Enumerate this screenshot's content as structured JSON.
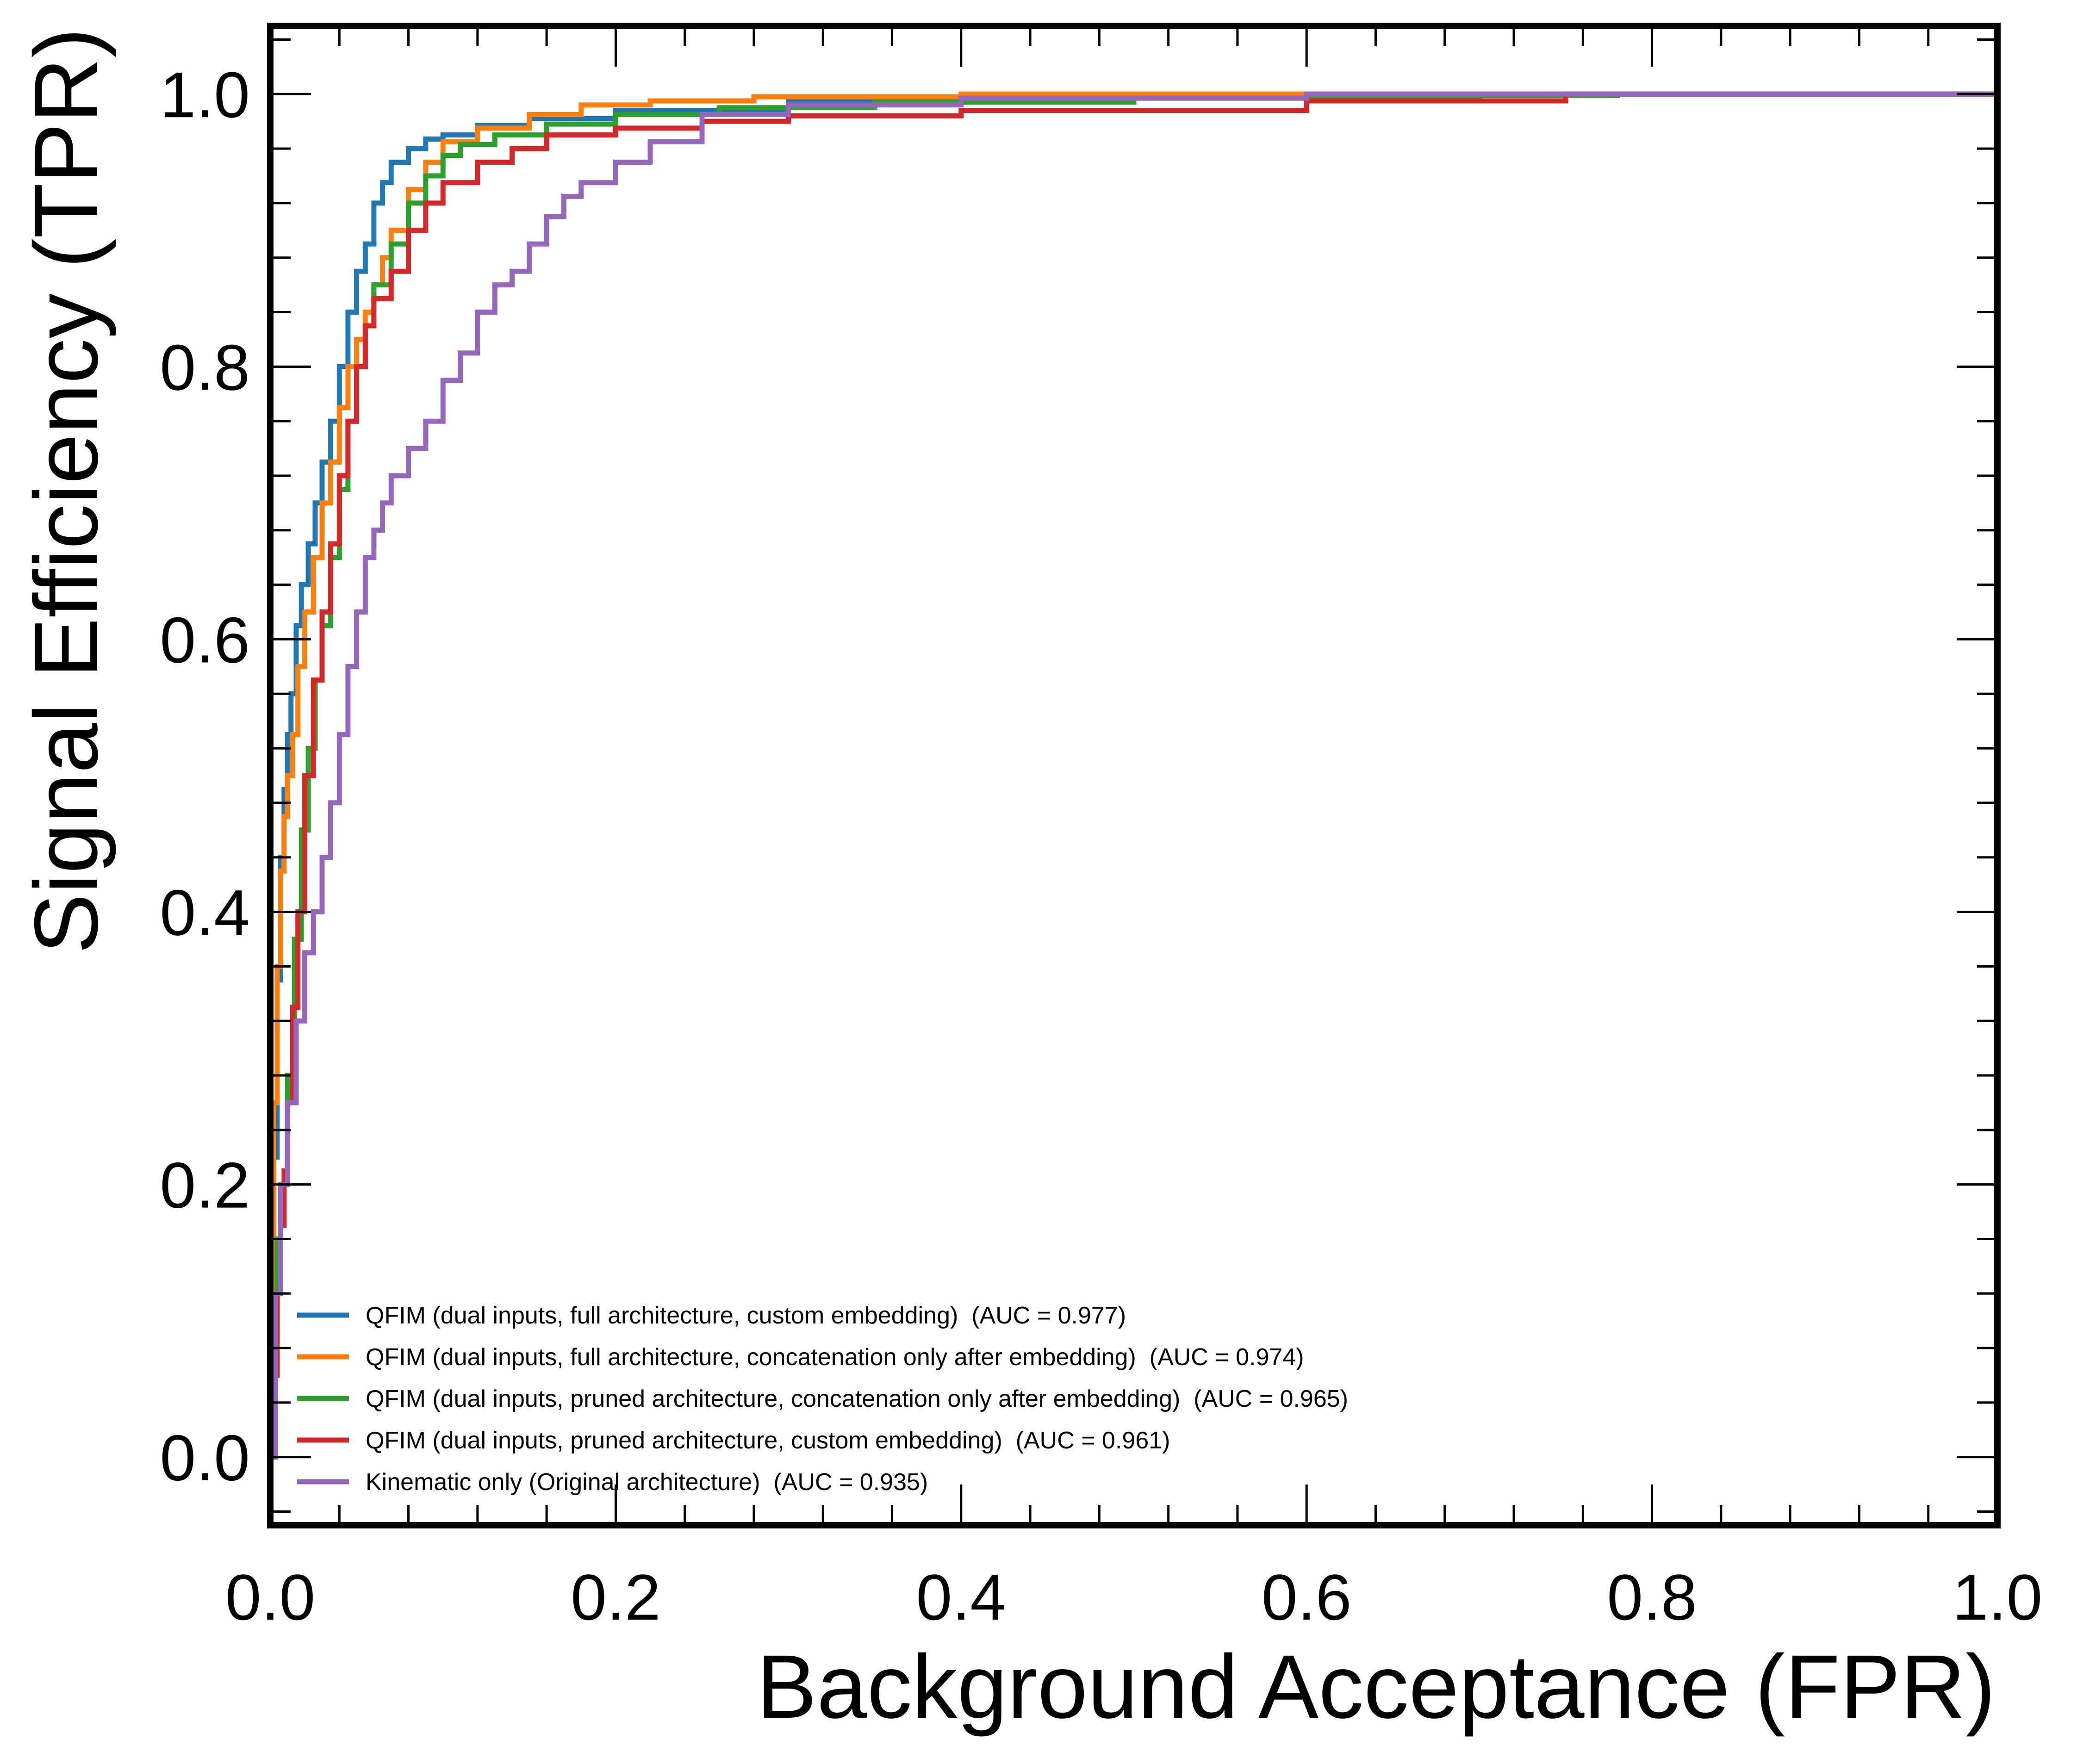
{
  "chart_data": {
    "type": "line",
    "xlabel": "Background Acceptance (FPR)",
    "ylabel": "Signal Efficiency (TPR)",
    "xlim": [
      0.0,
      1.0
    ],
    "ylim": [
      -0.05,
      1.05
    ],
    "x_ticks": [
      0.0,
      0.2,
      0.4,
      0.6,
      0.8,
      1.0
    ],
    "x_tick_labels": [
      "0.0",
      "0.2",
      "0.4",
      "0.6",
      "0.8",
      "1.0"
    ],
    "y_ticks": [
      0.0,
      0.2,
      0.4,
      0.6,
      0.8,
      1.0
    ],
    "y_tick_labels": [
      "0.0",
      "0.2",
      "0.4",
      "0.6",
      "0.8",
      "1.0"
    ],
    "grid": false,
    "legend_position": "lower-left",
    "series": [
      {
        "name": "QFIM (dual inputs, full architecture, custom embedding)  (AUC = 0.977)",
        "color": "#1f77b4",
        "x": [
          0.0,
          0.001,
          0.002,
          0.004,
          0.006,
          0.008,
          0.01,
          0.012,
          0.015,
          0.018,
          0.022,
          0.026,
          0.03,
          0.035,
          0.04,
          0.045,
          0.05,
          0.055,
          0.06,
          0.065,
          0.07,
          0.08,
          0.09,
          0.1,
          0.12,
          0.15,
          0.2,
          0.3,
          0.4,
          0.6,
          0.8,
          1.0
        ],
        "y": [
          0.0,
          0.1,
          0.22,
          0.35,
          0.44,
          0.49,
          0.53,
          0.56,
          0.61,
          0.64,
          0.67,
          0.7,
          0.73,
          0.76,
          0.8,
          0.84,
          0.87,
          0.89,
          0.92,
          0.935,
          0.95,
          0.96,
          0.967,
          0.97,
          0.977,
          0.982,
          0.988,
          0.995,
          0.998,
          1.0,
          1.0,
          1.0
        ]
      },
      {
        "name": "QFIM (dual inputs, full architecture, concatenation only after embedding)  (AUC = 0.974)",
        "color": "#ff7f0e",
        "x": [
          0.0,
          0.001,
          0.002,
          0.004,
          0.006,
          0.008,
          0.01,
          0.013,
          0.016,
          0.02,
          0.025,
          0.03,
          0.035,
          0.04,
          0.045,
          0.05,
          0.055,
          0.06,
          0.065,
          0.07,
          0.08,
          0.09,
          0.1,
          0.12,
          0.15,
          0.18,
          0.22,
          0.28,
          0.4,
          0.6,
          0.8,
          1.0
        ],
        "y": [
          0.0,
          0.14,
          0.26,
          0.36,
          0.43,
          0.47,
          0.5,
          0.53,
          0.58,
          0.62,
          0.66,
          0.7,
          0.73,
          0.77,
          0.8,
          0.82,
          0.84,
          0.86,
          0.88,
          0.9,
          0.93,
          0.95,
          0.965,
          0.975,
          0.985,
          0.992,
          0.995,
          0.998,
          1.0,
          1.0,
          1.0,
          1.0
        ]
      },
      {
        "name": "QFIM (dual inputs, pruned architecture, concatenation only after embedding)  (AUC = 0.965)",
        "color": "#2ca02c",
        "x": [
          0.0,
          0.002,
          0.004,
          0.006,
          0.01,
          0.014,
          0.018,
          0.022,
          0.026,
          0.03,
          0.035,
          0.04,
          0.045,
          0.05,
          0.055,
          0.06,
          0.07,
          0.08,
          0.09,
          0.1,
          0.11,
          0.13,
          0.16,
          0.2,
          0.26,
          0.35,
          0.5,
          0.7,
          0.78,
          1.0
        ],
        "y": [
          0.0,
          0.1,
          0.16,
          0.2,
          0.28,
          0.38,
          0.46,
          0.52,
          0.57,
          0.61,
          0.66,
          0.71,
          0.76,
          0.8,
          0.83,
          0.86,
          0.89,
          0.92,
          0.94,
          0.955,
          0.963,
          0.97,
          0.978,
          0.985,
          0.99,
          0.994,
          0.997,
          0.999,
          1.0,
          1.0
        ]
      },
      {
        "name": "QFIM (dual inputs, pruned architecture, custom embedding)  (AUC = 0.961)",
        "color": "#d62728",
        "x": [
          0.0,
          0.002,
          0.004,
          0.006,
          0.008,
          0.01,
          0.013,
          0.016,
          0.02,
          0.025,
          0.03,
          0.035,
          0.04,
          0.045,
          0.05,
          0.055,
          0.06,
          0.07,
          0.08,
          0.09,
          0.1,
          0.12,
          0.14,
          0.16,
          0.2,
          0.25,
          0.3,
          0.4,
          0.6,
          0.75,
          1.0
        ],
        "y": [
          0.0,
          0.06,
          0.12,
          0.17,
          0.21,
          0.26,
          0.33,
          0.4,
          0.5,
          0.57,
          0.62,
          0.67,
          0.72,
          0.76,
          0.8,
          0.83,
          0.85,
          0.87,
          0.9,
          0.92,
          0.935,
          0.95,
          0.96,
          0.97,
          0.975,
          0.98,
          0.984,
          0.988,
          0.995,
          1.0,
          1.0
        ]
      },
      {
        "name": "Kinematic only (Original architecture)  (AUC = 0.935)",
        "color": "#9467bd",
        "x": [
          0.0,
          0.003,
          0.006,
          0.01,
          0.015,
          0.02,
          0.025,
          0.03,
          0.035,
          0.04,
          0.045,
          0.05,
          0.055,
          0.06,
          0.065,
          0.07,
          0.08,
          0.09,
          0.1,
          0.11,
          0.12,
          0.13,
          0.14,
          0.15,
          0.16,
          0.17,
          0.18,
          0.2,
          0.22,
          0.25,
          0.3,
          0.4,
          0.6,
          0.8,
          1.0
        ],
        "y": [
          0.0,
          0.12,
          0.2,
          0.26,
          0.32,
          0.37,
          0.4,
          0.44,
          0.48,
          0.53,
          0.58,
          0.62,
          0.66,
          0.68,
          0.7,
          0.72,
          0.74,
          0.76,
          0.79,
          0.81,
          0.84,
          0.86,
          0.87,
          0.89,
          0.91,
          0.925,
          0.935,
          0.95,
          0.965,
          0.985,
          0.992,
          0.997,
          1.0,
          1.0,
          1.0
        ]
      }
    ]
  }
}
